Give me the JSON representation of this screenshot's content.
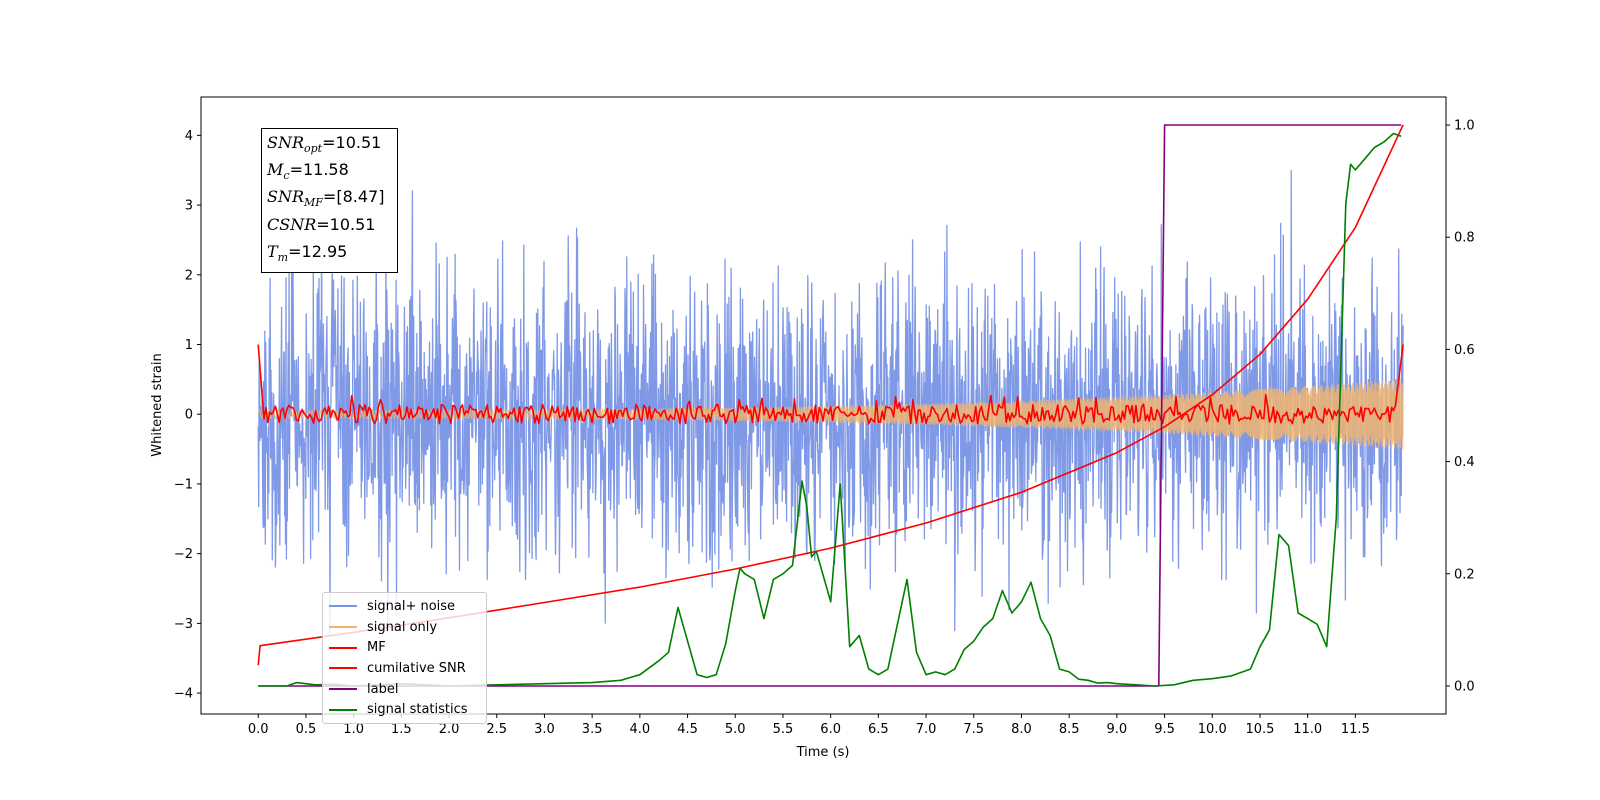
{
  "chart_data": {
    "type": "line",
    "xlabel": "Time (s)",
    "ylabel": "Whitened strain",
    "xlim": [
      -0.6,
      12.45
    ],
    "ylim": [
      -4.3,
      4.55
    ],
    "y2lim": [
      -0.05,
      1.05
    ],
    "x_ticks": [
      "0.0",
      "0.5",
      "1.0",
      "1.5",
      "2.0",
      "2.5",
      "3.0",
      "3.5",
      "4.0",
      "4.5",
      "5.0",
      "5.5",
      "6.0",
      "6.5",
      "7.0",
      "7.5",
      "8.0",
      "8.5",
      "9.0",
      "9.5",
      "10.0",
      "10.5",
      "11.0",
      "11.5"
    ],
    "y_ticks": [
      "4",
      "3",
      "2",
      "1",
      "0",
      "−1",
      "−2",
      "−3",
      "−4"
    ],
    "y2_ticks": [
      "1.0",
      "0.8",
      "0.6",
      "0.4",
      "0.2",
      "0.0"
    ],
    "annotation": [
      {
        "base": "SNR",
        "sub": "opt",
        "value": "=10.51"
      },
      {
        "base": "M",
        "sub": "c",
        "value": "=11.58"
      },
      {
        "base": "SNR",
        "sub": "MF",
        "value": "=[8.47]"
      },
      {
        "base": "CSNR",
        "sub": "",
        "value": "=10.51"
      },
      {
        "base": "T",
        "sub": "m",
        "value": "=12.95"
      }
    ],
    "series": [
      {
        "name": "signal+ noise",
        "color": "#7894e6",
        "axis": "left",
        "kind": "noise",
        "t_range": [
          0,
          12.0
        ],
        "amplitude_sd": 1.0,
        "range": [
          -3.6,
          4.2
        ]
      },
      {
        "name": "signal only",
        "color": "#f0b46e",
        "axis": "left",
        "kind": "chirp",
        "t_range": [
          0,
          12.0
        ],
        "amplitude_start": 0.06,
        "amplitude_end": 0.5
      },
      {
        "name": "MF",
        "color": "#ff0000",
        "axis": "left",
        "kind": "matched-filter",
        "t_range": [
          0,
          12.0
        ],
        "start_value": 1.0,
        "end_value": 1.0
      },
      {
        "name": "cumilative SNR",
        "color": "#ff0000",
        "axis": "left",
        "x": [
          0.0,
          0.02,
          1.0,
          2.0,
          3.0,
          4.0,
          5.0,
          6.0,
          7.0,
          8.0,
          9.0,
          9.5,
          10.0,
          10.5,
          11.0,
          11.5,
          12.0
        ],
        "y": [
          -3.6,
          -3.32,
          -3.13,
          -2.92,
          -2.7,
          -2.48,
          -2.22,
          -1.92,
          -1.56,
          -1.12,
          -0.55,
          -0.18,
          0.28,
          0.86,
          1.65,
          2.68,
          4.15
        ]
      },
      {
        "name": "label",
        "color": "#800080",
        "axis": "right",
        "x": [
          0.0,
          9.44,
          9.5,
          11.98
        ],
        "y": [
          0.0,
          0.0,
          1.0,
          1.0
        ]
      },
      {
        "name": "signal statistics",
        "color": "#008000",
        "axis": "right",
        "x": [
          0.0,
          0.3,
          0.4,
          0.6,
          0.8,
          1.0,
          1.5,
          2.0,
          2.5,
          3.0,
          3.5,
          3.8,
          4.0,
          4.2,
          4.3,
          4.4,
          4.5,
          4.6,
          4.7,
          4.8,
          4.9,
          5.0,
          5.05,
          5.1,
          5.2,
          5.3,
          5.4,
          5.5,
          5.6,
          5.7,
          5.75,
          5.8,
          5.85,
          5.9,
          6.0,
          6.1,
          6.2,
          6.3,
          6.4,
          6.5,
          6.6,
          6.7,
          6.8,
          6.9,
          7.0,
          7.1,
          7.2,
          7.3,
          7.4,
          7.5,
          7.6,
          7.7,
          7.8,
          7.9,
          8.0,
          8.1,
          8.2,
          8.3,
          8.4,
          8.5,
          8.6,
          8.7,
          8.8,
          8.9,
          9.0,
          9.2,
          9.4,
          9.6,
          9.8,
          10.0,
          10.2,
          10.4,
          10.5,
          10.6,
          10.7,
          10.8,
          10.9,
          11.0,
          11.1,
          11.2,
          11.3,
          11.4,
          11.45,
          11.5,
          11.6,
          11.7,
          11.8,
          11.9,
          11.98
        ],
        "y": [
          0.0,
          0.0,
          0.006,
          0.002,
          0.003,
          0.0,
          0.004,
          0.0,
          0.002,
          0.004,
          0.006,
          0.01,
          0.02,
          0.045,
          0.06,
          0.14,
          0.08,
          0.02,
          0.015,
          0.02,
          0.075,
          0.17,
          0.21,
          0.2,
          0.19,
          0.12,
          0.19,
          0.2,
          0.215,
          0.365,
          0.32,
          0.23,
          0.24,
          0.21,
          0.15,
          0.36,
          0.07,
          0.09,
          0.03,
          0.02,
          0.03,
          0.11,
          0.19,
          0.06,
          0.02,
          0.025,
          0.02,
          0.03,
          0.065,
          0.08,
          0.105,
          0.12,
          0.17,
          0.13,
          0.15,
          0.185,
          0.12,
          0.09,
          0.03,
          0.025,
          0.012,
          0.01,
          0.005,
          0.006,
          0.004,
          0.002,
          0.0,
          0.002,
          0.01,
          0.013,
          0.018,
          0.03,
          0.07,
          0.1,
          0.27,
          0.25,
          0.13,
          0.12,
          0.11,
          0.07,
          0.3,
          0.86,
          0.93,
          0.92,
          0.94,
          0.96,
          0.97,
          0.985,
          0.98
        ]
      }
    ]
  }
}
